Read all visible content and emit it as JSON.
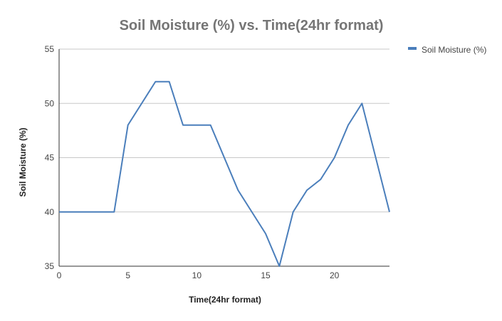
{
  "chart_data": {
    "type": "line",
    "title": "Soil Moisture (%) vs. Time(24hr format)",
    "xlabel": "Time(24hr format)",
    "ylabel": "Soil Moisture (%)",
    "xlim": [
      0,
      24
    ],
    "ylim": [
      35,
      55
    ],
    "x_ticks": [
      0,
      5,
      10,
      15,
      20
    ],
    "y_ticks": [
      35,
      40,
      45,
      50,
      55
    ],
    "grid": true,
    "legend_position": "top-right",
    "series": [
      {
        "name": "Soil Moisture (%)",
        "color": "#4a7ebb",
        "x": [
          0,
          1,
          2,
          3,
          4,
          5,
          6,
          7,
          8,
          9,
          10,
          11,
          12,
          13,
          14,
          15,
          16,
          17,
          18,
          19,
          20,
          21,
          22,
          23,
          24
        ],
        "values": [
          40,
          40,
          40,
          40,
          40,
          48,
          50,
          52,
          52,
          48,
          48,
          48,
          45,
          42,
          40,
          38,
          35,
          40,
          42,
          43,
          45,
          48,
          50,
          45,
          40
        ]
      }
    ]
  }
}
